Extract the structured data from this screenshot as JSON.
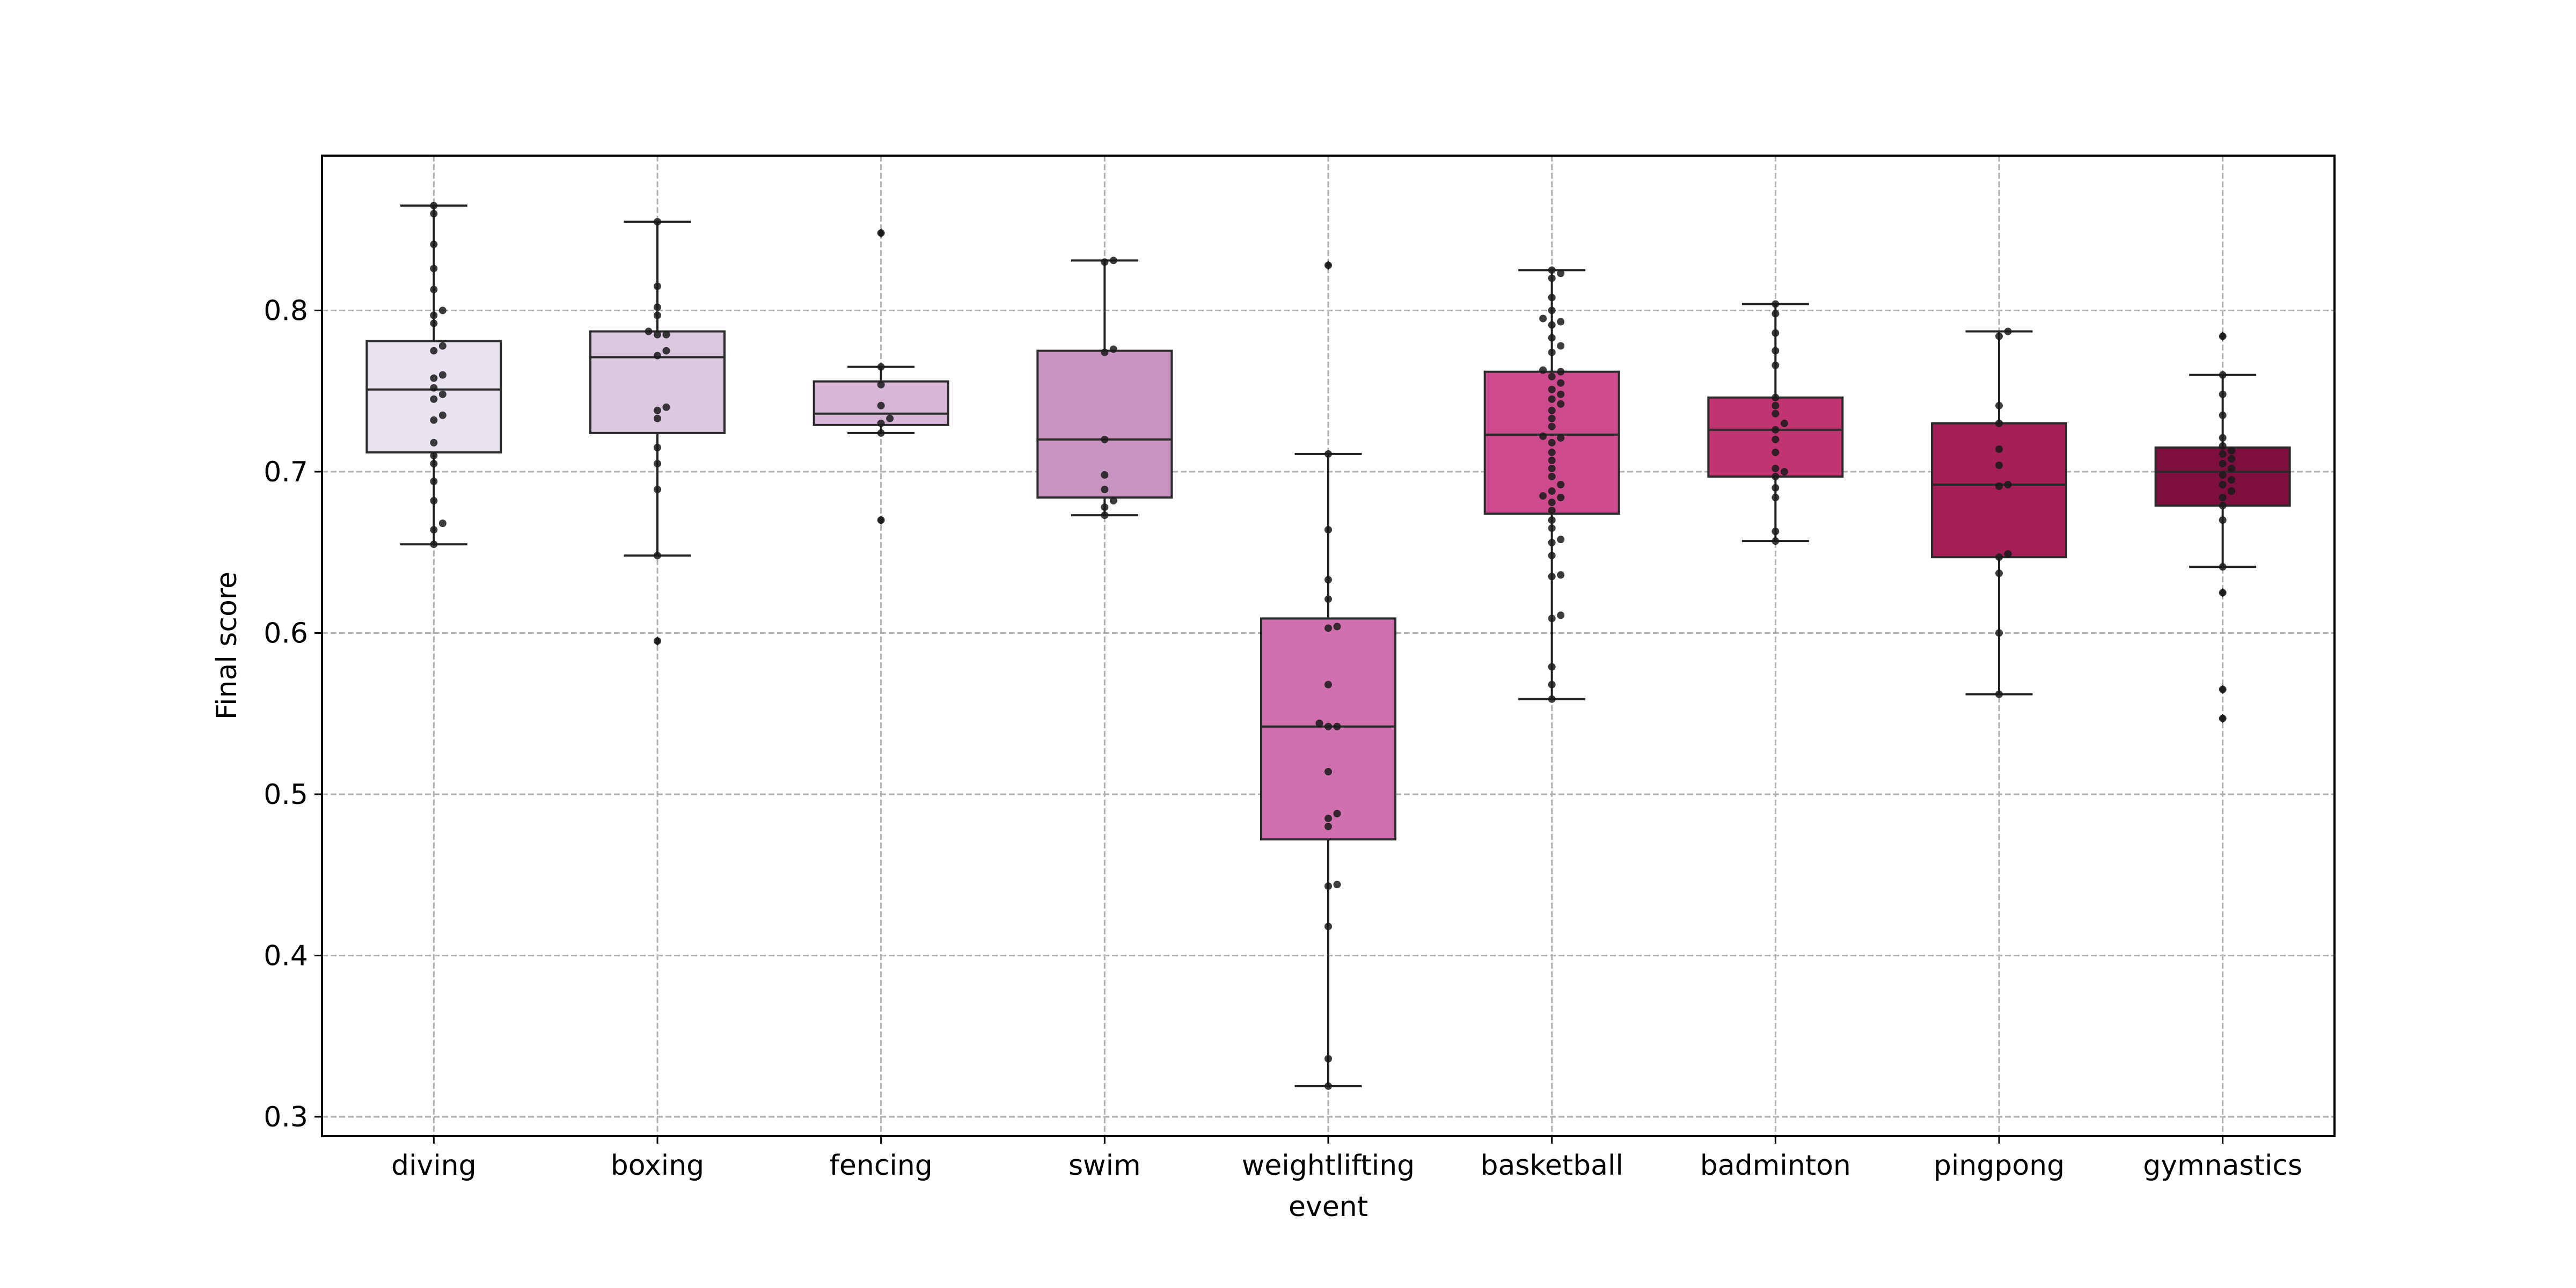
{
  "chart_data": {
    "type": "box",
    "xlabel": "event",
    "ylabel": "Final score",
    "ylim": [
      0.288,
      0.896
    ],
    "yticks": [
      0.3,
      0.4,
      0.5,
      0.6,
      0.7,
      0.8
    ],
    "ytick_labels": [
      "0.3",
      "0.4",
      "0.5",
      "0.6",
      "0.7",
      "0.8"
    ],
    "grid": true,
    "categories": [
      "diving",
      "boxing",
      "fencing",
      "swim",
      "weightlifting",
      "basketball",
      "badminton",
      "pingpong",
      "gymnastics"
    ],
    "colors": [
      "#e9e3ef",
      "#dbc9e0",
      "#d7b6d8",
      "#c894c2",
      "#d070ae",
      "#cc4a8d",
      "#c23470",
      "#a41f55",
      "#7c0f3e"
    ],
    "boxes": [
      {
        "name": "diving",
        "q1": 0.712,
        "median": 0.751,
        "q3": 0.781,
        "whisker_low": 0.655,
        "whisker_high": 0.865,
        "outliers": []
      },
      {
        "name": "boxing",
        "q1": 0.724,
        "median": 0.771,
        "q3": 0.787,
        "whisker_low": 0.648,
        "whisker_high": 0.855,
        "outliers": [
          0.595
        ]
      },
      {
        "name": "fencing",
        "q1": 0.729,
        "median": 0.736,
        "q3": 0.756,
        "whisker_low": 0.724,
        "whisker_high": 0.765,
        "outliers": [
          0.848,
          0.67
        ]
      },
      {
        "name": "swim",
        "q1": 0.684,
        "median": 0.72,
        "q3": 0.775,
        "whisker_low": 0.673,
        "whisker_high": 0.831,
        "outliers": []
      },
      {
        "name": "weightlifting",
        "q1": 0.472,
        "median": 0.542,
        "q3": 0.609,
        "whisker_low": 0.319,
        "whisker_high": 0.711,
        "outliers": [
          0.828
        ]
      },
      {
        "name": "basketball",
        "q1": 0.674,
        "median": 0.723,
        "q3": 0.762,
        "whisker_low": 0.559,
        "whisker_high": 0.825,
        "outliers": []
      },
      {
        "name": "badminton",
        "q1": 0.697,
        "median": 0.726,
        "q3": 0.746,
        "whisker_low": 0.657,
        "whisker_high": 0.804,
        "outliers": []
      },
      {
        "name": "pingpong",
        "q1": 0.647,
        "median": 0.692,
        "q3": 0.73,
        "whisker_low": 0.562,
        "whisker_high": 0.787,
        "outliers": []
      },
      {
        "name": "gymnastics",
        "q1": 0.679,
        "median": 0.7,
        "q3": 0.715,
        "whisker_low": 0.641,
        "whisker_high": 0.76,
        "outliers": [
          0.784,
          0.625,
          0.565,
          0.547
        ]
      }
    ],
    "points": [
      [
        0.865,
        0.86,
        0.841,
        0.826,
        0.813,
        0.8,
        0.797,
        0.792,
        0.778,
        0.775,
        0.76,
        0.758,
        0.752,
        0.748,
        0.745,
        0.735,
        0.732,
        0.718,
        0.71,
        0.705,
        0.694,
        0.682,
        0.668,
        0.664,
        0.655
      ],
      [
        0.855,
        0.815,
        0.802,
        0.797,
        0.787,
        0.785,
        0.785,
        0.775,
        0.772,
        0.74,
        0.738,
        0.733,
        0.715,
        0.705,
        0.689,
        0.648,
        0.595
      ],
      [
        0.848,
        0.765,
        0.754,
        0.741,
        0.733,
        0.73,
        0.724,
        0.67
      ],
      [
        0.831,
        0.83,
        0.776,
        0.774,
        0.72,
        0.698,
        0.689,
        0.682,
        0.678,
        0.673
      ],
      [
        0.828,
        0.711,
        0.664,
        0.633,
        0.621,
        0.604,
        0.603,
        0.568,
        0.544,
        0.542,
        0.542,
        0.514,
        0.488,
        0.485,
        0.48,
        0.444,
        0.443,
        0.418,
        0.336,
        0.319
      ],
      [
        0.825,
        0.823,
        0.82,
        0.808,
        0.8,
        0.795,
        0.793,
        0.791,
        0.783,
        0.778,
        0.774,
        0.763,
        0.762,
        0.759,
        0.755,
        0.751,
        0.748,
        0.745,
        0.742,
        0.738,
        0.733,
        0.728,
        0.722,
        0.721,
        0.718,
        0.712,
        0.707,
        0.702,
        0.697,
        0.692,
        0.688,
        0.685,
        0.684,
        0.681,
        0.676,
        0.67,
        0.665,
        0.658,
        0.656,
        0.648,
        0.636,
        0.635,
        0.611,
        0.609,
        0.579,
        0.568,
        0.559
      ],
      [
        0.804,
        0.798,
        0.786,
        0.775,
        0.766,
        0.746,
        0.741,
        0.736,
        0.73,
        0.726,
        0.72,
        0.712,
        0.702,
        0.7,
        0.697,
        0.69,
        0.684,
        0.663,
        0.657
      ],
      [
        0.787,
        0.784,
        0.741,
        0.73,
        0.714,
        0.704,
        0.692,
        0.691,
        0.649,
        0.647,
        0.637,
        0.6,
        0.562
      ],
      [
        0.784,
        0.76,
        0.748,
        0.735,
        0.721,
        0.716,
        0.713,
        0.711,
        0.708,
        0.705,
        0.702,
        0.698,
        0.695,
        0.692,
        0.688,
        0.684,
        0.679,
        0.67,
        0.641,
        0.625,
        0.565,
        0.547
      ]
    ]
  }
}
